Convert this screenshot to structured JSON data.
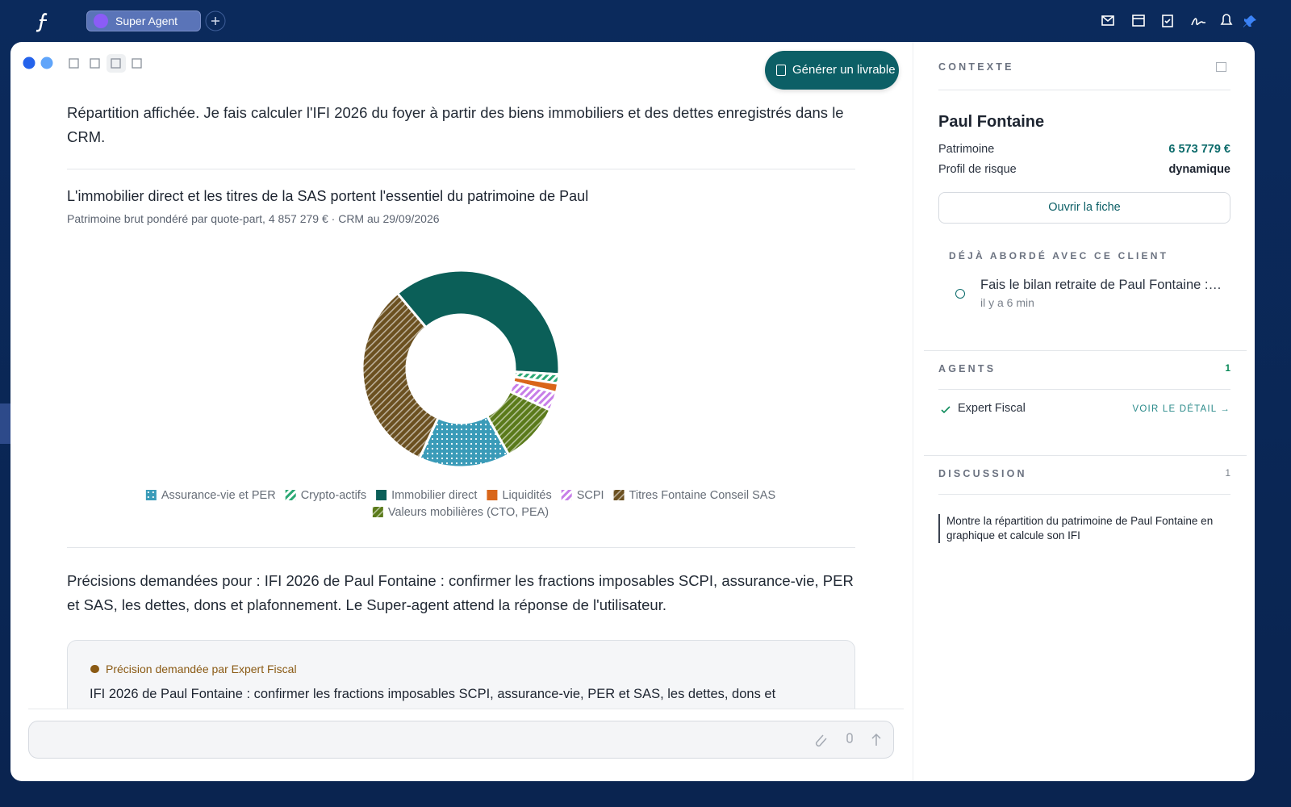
{
  "topbar": {
    "tab": "Super Agent"
  },
  "toolbar": {
    "generate_button": "Générer un livrable"
  },
  "messages": {
    "intro": "Répartition affichée. Je fais calculer l'IFI 2026 du foyer à partir des biens immobiliers et des dettes enregistrés dans le CRM.",
    "followup": "Précisions demandées pour : IFI 2026 de Paul Fontaine : confirmer les fractions imposables SCPI, assurance-vie, PER et SAS, les dettes, dons et plafonnement. Le Super-agent attend la réponse de l'utilisateur.",
    "question": {
      "label": "Précision demandée par Expert Fiscal",
      "text": "IFI 2026 de Paul Fontaine : confirmer les fractions imposables SCPI, assurance-vie, PER et SAS, les dettes, dons et"
    }
  },
  "chart_data": {
    "type": "pie",
    "donut": true,
    "title": "L'immobilier direct et les titres de la SAS portent l'essentiel du patrimoine de Paul",
    "subtitle": "Patrimoine brut pondéré par quote-part, 4 857 279 € · CRM au 29/09/2026",
    "categories": [
      "Assurance-vie et PER",
      "Crypto-actifs",
      "Immobilier direct",
      "Liquidités",
      "SCPI",
      "Titres Fontaine Conseil SAS",
      "Valeurs mobilières (CTO, PEA)"
    ],
    "values": [
      15,
      1.5,
      37,
      1.5,
      3,
      32,
      10
    ],
    "colors": [
      "#3a9bb8",
      "#2aa874",
      "#0b5f58",
      "#d9661a",
      "#c77ee8",
      "#6b5020",
      "#5a7a1a"
    ],
    "patterns": [
      "dots",
      "hatch",
      "solid",
      "solid",
      "hatch",
      "stripes",
      "stripes"
    ],
    "legend": "bottom"
  },
  "context": {
    "heading": "CONTEXTE",
    "client": "Paul Fontaine",
    "patrimoine_label": "Patrimoine",
    "patrimoine_value": "6 573 779 €",
    "risk_label": "Profil de risque",
    "risk_value": "dynamique",
    "open_button": "Ouvrir la fiche",
    "history_heading": "DÉJÀ ABORDÉ AVEC CE CLIENT",
    "history_item": {
      "title": "Fais le bilan retraite de Paul Fontaine : …",
      "time": "il y a 6 min"
    }
  },
  "agents": {
    "heading": "AGENTS",
    "count": 1,
    "items": [
      {
        "name": "Expert Fiscal",
        "link": "VOIR LE DÉTAIL →"
      }
    ]
  },
  "discussion": {
    "heading": "DISCUSSION",
    "count": 1,
    "message": "Montre la répartition du patrimoine de Paul Fontaine en graphique et calcule son IFI"
  }
}
